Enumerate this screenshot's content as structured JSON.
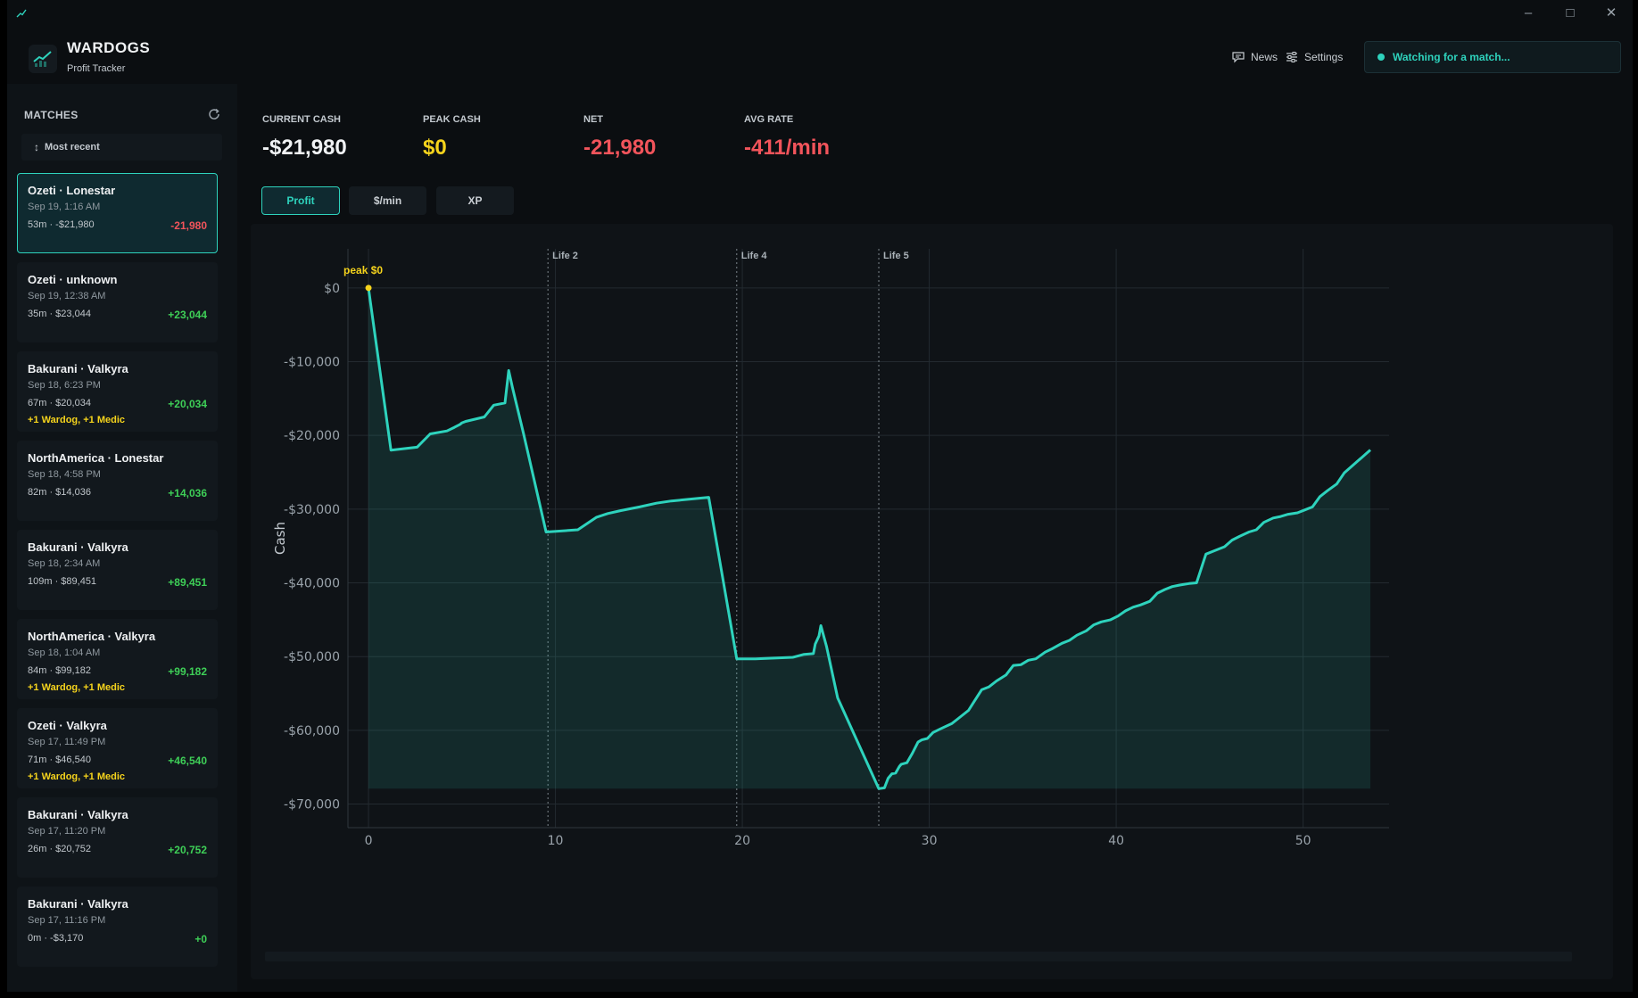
{
  "header": {
    "title": "WARDOGS",
    "subtitle": "Profit Tracker",
    "news_label": "News",
    "settings_label": "Settings",
    "status": "Watching for a match..."
  },
  "sidebar": {
    "title": "MATCHES",
    "sort_label": "Most recent",
    "matches": [
      {
        "title": "Ozeti · Lonestar",
        "date": "Sep 19, 1:16 AM",
        "meta": "53m · -$21,980",
        "net": "-21,980",
        "bonus": ""
      },
      {
        "title": "Ozeti · unknown",
        "date": "Sep 19, 12:38 AM",
        "meta": "35m · $23,044",
        "net": "+23,044",
        "bonus": ""
      },
      {
        "title": "Bakurani · Valkyra",
        "date": "Sep 18, 6:23 PM",
        "meta": "67m · $20,034",
        "net": "+20,034",
        "bonus": "+1 Wardog, +1 Medic"
      },
      {
        "title": "NorthAmerica · Lonestar",
        "date": "Sep 18, 4:58 PM",
        "meta": "82m · $14,036",
        "net": "+14,036",
        "bonus": ""
      },
      {
        "title": "Bakurani · Valkyra",
        "date": "Sep 18, 2:34 AM",
        "meta": "109m · $89,451",
        "net": "+89,451",
        "bonus": ""
      },
      {
        "title": "NorthAmerica · Valkyra",
        "date": "Sep 18, 1:04 AM",
        "meta": "84m · $99,182",
        "net": "+99,182",
        "bonus": "+1 Wardog, +1 Medic"
      },
      {
        "title": "Ozeti · Valkyra",
        "date": "Sep 17, 11:49 PM",
        "meta": "71m · $46,540",
        "net": "+46,540",
        "bonus": "+1 Wardog, +1 Medic"
      },
      {
        "title": "Bakurani · Valkyra",
        "date": "Sep 17, 11:20 PM",
        "meta": "26m · $20,752",
        "net": "+20,752",
        "bonus": ""
      },
      {
        "title": "Bakurani · Valkyra",
        "date": "Sep 17, 11:16 PM",
        "meta": "0m · -$3,170",
        "net": "+0",
        "bonus": ""
      }
    ]
  },
  "stats": {
    "current_cash_label": "CURRENT CASH",
    "current_cash": "-$21,980",
    "peak_cash_label": "PEAK CASH",
    "peak_cash": "$0",
    "net_label": "NET",
    "net": "-21,980",
    "avg_rate_label": "AVG RATE",
    "avg_rate": "-411/min"
  },
  "tabs": [
    "Profit",
    "$/min",
    "XP"
  ],
  "colors": {
    "accent": "#2ed3bd",
    "positive": "#3ecf57",
    "negative": "#f2545b",
    "highlight": "#f5d31c"
  },
  "chart_data": {
    "type": "area",
    "ylabel": "Cash",
    "xlabel": "",
    "xlim": [
      -1.1,
      54.6
    ],
    "ylim": [
      -73200,
      5300
    ],
    "yticks": [
      0,
      -10000,
      -20000,
      -30000,
      -40000,
      -50000,
      -60000,
      -70000
    ],
    "ytick_labels": [
      "$0",
      "-$10,000",
      "-$20,000",
      "-$30,000",
      "-$40,000",
      "-$50,000",
      "-$60,000",
      "-$70,000"
    ],
    "xticks": [
      0,
      10,
      20,
      30,
      40,
      50
    ],
    "xtick_labels": [
      "0",
      "10",
      "20",
      "30",
      "40",
      "50"
    ],
    "peak": {
      "x": 0,
      "y": 0,
      "label": "peak $0"
    },
    "life_markers": [
      {
        "x": 9.6,
        "label": "Life 2"
      },
      {
        "x": 19.7,
        "label": "Life 4"
      },
      {
        "x": 27.3,
        "label": "Life 5"
      }
    ],
    "grid": true,
    "series": [
      {
        "x": [
          0,
          1.2,
          2.6,
          3.3,
          4.2,
          4.6,
          4.9,
          5.0,
          5.2,
          6.2,
          6.7,
          7.3,
          7.5,
          7.7,
          8.3,
          9.5,
          11.2,
          12.2,
          12.8,
          13.5,
          14.1,
          14.5,
          15.4,
          16.2,
          17.4,
          18.2,
          19.7,
          20.7,
          22.7,
          23.3,
          23.8,
          23.9,
          24.1,
          24.2,
          24.5,
          25.1,
          27.3,
          27.6,
          27.8,
          28.0,
          28.2,
          28.4,
          28.5,
          28.8,
          29.1,
          29.4,
          29.6,
          29.9,
          30.2,
          30.6,
          31.2,
          31.5,
          32.1,
          32.4,
          32.8,
          33.2,
          33.6,
          34.1,
          34.5,
          34.9,
          35.3,
          35.7,
          36.2,
          36.6,
          37.1,
          37.5,
          37.9,
          38.4,
          38.8,
          39.2,
          39.7,
          40.1,
          40.5,
          40.9,
          41.3,
          41.8,
          42.2,
          42.6,
          43.0,
          43.4,
          43.9,
          44.3,
          44.8,
          45.3,
          45.8,
          46.2,
          46.6,
          47.1,
          47.5,
          47.9,
          48.4,
          48.8,
          49.2,
          49.7,
          50.1,
          50.5,
          50.9,
          51.3,
          51.8,
          52.2,
          53.6
        ],
        "y": [
          0,
          -22000,
          -21600,
          -19800,
          -19400,
          -18900,
          -18500,
          -18300,
          -18100,
          -17500,
          -15900,
          -15600,
          -11200,
          -13500,
          -19800,
          -33100,
          -32800,
          -31100,
          -30600,
          -30200,
          -29900,
          -29700,
          -29200,
          -28900,
          -28600,
          -28400,
          -50300,
          -50300,
          -50100,
          -49700,
          -49600,
          -48300,
          -47200,
          -45800,
          -48600,
          -55600,
          -67900,
          -67800,
          -66500,
          -65900,
          -65800,
          -64900,
          -64600,
          -64400,
          -63100,
          -61600,
          -61300,
          -61100,
          -60300,
          -59800,
          -59100,
          -58500,
          -57300,
          -56100,
          -54500,
          -54100,
          -53300,
          -52500,
          -51200,
          -51100,
          -50500,
          -50300,
          -49400,
          -48900,
          -48200,
          -47800,
          -47100,
          -46500,
          -45700,
          -45300,
          -45000,
          -44500,
          -43800,
          -43300,
          -43000,
          -42500,
          -41400,
          -40900,
          -40500,
          -40300,
          -40100,
          -40000,
          -36100,
          -35600,
          -35100,
          -34200,
          -33700,
          -33100,
          -32800,
          -31800,
          -31200,
          -31000,
          -30700,
          -30500,
          -30100,
          -29700,
          -28300,
          -27500,
          -26600,
          -25100,
          -21980
        ]
      }
    ]
  }
}
